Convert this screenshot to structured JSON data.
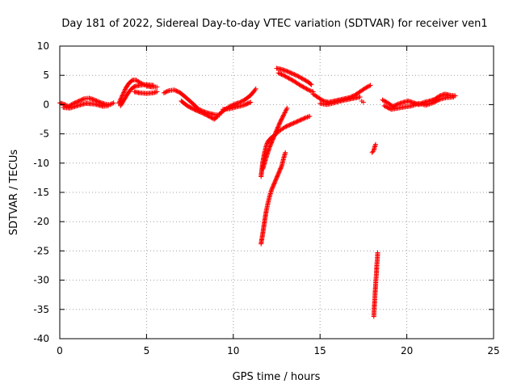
{
  "chart_data": {
    "type": "scatter",
    "title": "Day 181 of 2022, Sidereal Day-to-day VTEC variation (SDTVAR) for receiver ven1",
    "xlabel": "GPS time / hours",
    "ylabel": "SDTVAR / TECUs",
    "xlim": [
      0,
      25
    ],
    "ylim": [
      -40,
      10
    ],
    "xticks": [
      0,
      5,
      10,
      15,
      20,
      25
    ],
    "yticks": [
      -40,
      -35,
      -30,
      -25,
      -20,
      -15,
      -10,
      -5,
      0,
      5,
      10
    ],
    "grid": true,
    "marker": "+",
    "marker_color": "#ff0000",
    "series": [
      {
        "name": "ven1",
        "segments": [
          [
            [
              0.0,
              0.3
            ],
            [
              0.3,
              0.0
            ],
            [
              0.5,
              -0.3
            ],
            [
              0.8,
              0.2
            ],
            [
              1.1,
              0.6
            ],
            [
              1.4,
              1.0
            ],
            [
              1.7,
              1.1
            ],
            [
              2.0,
              0.8
            ],
            [
              2.3,
              0.4
            ],
            [
              2.6,
              0.1
            ],
            [
              2.9,
              0.0
            ],
            [
              3.1,
              0.3
            ]
          ],
          [
            [
              0.2,
              -0.5
            ],
            [
              0.6,
              -0.6
            ],
            [
              1.0,
              -0.2
            ],
            [
              1.5,
              0.2
            ],
            [
              2.0,
              0.1
            ],
            [
              2.5,
              -0.3
            ],
            [
              2.8,
              -0.2
            ]
          ],
          [
            [
              3.4,
              0.2
            ],
            [
              3.6,
              1.5
            ],
            [
              3.8,
              2.8
            ],
            [
              4.0,
              3.7
            ],
            [
              4.2,
              4.2
            ],
            [
              4.4,
              4.2
            ],
            [
              4.6,
              3.8
            ],
            [
              4.8,
              3.5
            ],
            [
              5.0,
              3.2
            ],
            [
              5.3,
              3.0
            ],
            [
              5.6,
              3.0
            ]
          ],
          [
            [
              3.5,
              -0.2
            ],
            [
              3.7,
              0.8
            ],
            [
              3.9,
              1.8
            ],
            [
              4.1,
              2.6
            ],
            [
              4.3,
              3.1
            ],
            [
              4.6,
              3.3
            ],
            [
              5.0,
              3.4
            ],
            [
              5.4,
              3.3
            ]
          ],
          [
            [
              4.3,
              2.2
            ],
            [
              4.6,
              2.0
            ],
            [
              5.0,
              1.9
            ],
            [
              5.4,
              2.0
            ],
            [
              5.6,
              2.2
            ]
          ],
          [
            [
              6.0,
              2.0
            ],
            [
              6.3,
              2.4
            ],
            [
              6.6,
              2.5
            ],
            [
              6.9,
              2.1
            ],
            [
              7.2,
              1.4
            ],
            [
              7.5,
              0.6
            ],
            [
              7.8,
              -0.2
            ],
            [
              8.0,
              -0.8
            ],
            [
              8.3,
              -1.2
            ],
            [
              8.6,
              -1.5
            ],
            [
              8.9,
              -1.7
            ],
            [
              9.2,
              -1.8
            ]
          ],
          [
            [
              7.0,
              0.6
            ],
            [
              7.4,
              -0.3
            ],
            [
              7.8,
              -0.9
            ],
            [
              8.2,
              -1.4
            ],
            [
              8.6,
              -2.0
            ],
            [
              8.9,
              -2.5
            ],
            [
              9.1,
              -2.0
            ]
          ],
          [
            [
              9.2,
              -1.6
            ],
            [
              9.5,
              -0.9
            ],
            [
              9.8,
              -0.3
            ],
            [
              10.1,
              0.1
            ],
            [
              10.4,
              0.4
            ],
            [
              10.7,
              0.9
            ],
            [
              11.0,
              1.6
            ],
            [
              11.2,
              2.3
            ],
            [
              11.3,
              2.7
            ]
          ],
          [
            [
              9.4,
              -0.8
            ],
            [
              9.8,
              -0.7
            ],
            [
              10.2,
              -0.4
            ],
            [
              10.6,
              -0.1
            ],
            [
              11.0,
              0.4
            ]
          ],
          [
            [
              11.6,
              -12.3
            ],
            [
              11.7,
              -9.8
            ],
            [
              11.8,
              -8.2
            ],
            [
              11.9,
              -7.0
            ],
            [
              12.0,
              -6.3
            ],
            [
              12.2,
              -5.6
            ],
            [
              12.4,
              -5.2
            ],
            [
              12.6,
              -4.6
            ],
            [
              12.8,
              -4.2
            ],
            [
              13.0,
              -3.8
            ],
            [
              13.3,
              -3.4
            ],
            [
              13.6,
              -3.0
            ],
            [
              13.9,
              -2.6
            ],
            [
              14.2,
              -2.2
            ],
            [
              14.4,
              -2.0
            ]
          ],
          [
            [
              11.7,
              -11.0
            ],
            [
              11.9,
              -9.0
            ],
            [
              12.1,
              -7.2
            ],
            [
              12.3,
              -5.8
            ],
            [
              12.5,
              -4.4
            ],
            [
              12.7,
              -3.0
            ],
            [
              12.9,
              -1.8
            ],
            [
              13.0,
              -1.2
            ],
            [
              13.1,
              -0.6
            ]
          ],
          [
            [
              11.6,
              -23.8
            ],
            [
              11.7,
              -22.0
            ],
            [
              11.8,
              -20.0
            ],
            [
              11.9,
              -18.2
            ],
            [
              12.0,
              -16.8
            ],
            [
              12.1,
              -15.6
            ],
            [
              12.2,
              -14.6
            ],
            [
              12.4,
              -13.2
            ],
            [
              12.6,
              -11.8
            ],
            [
              12.8,
              -10.4
            ],
            [
              12.9,
              -9.2
            ],
            [
              13.0,
              -8.2
            ]
          ],
          [
            [
              12.5,
              6.2
            ],
            [
              12.8,
              6.0
            ],
            [
              13.1,
              5.7
            ],
            [
              13.4,
              5.3
            ],
            [
              13.7,
              4.9
            ],
            [
              14.0,
              4.4
            ],
            [
              14.3,
              3.9
            ],
            [
              14.5,
              3.4
            ]
          ],
          [
            [
              12.6,
              5.4
            ],
            [
              12.9,
              5.0
            ],
            [
              13.2,
              4.5
            ],
            [
              13.5,
              4.0
            ],
            [
              13.8,
              3.4
            ],
            [
              14.1,
              2.9
            ],
            [
              14.4,
              2.4
            ],
            [
              14.6,
              2.2
            ]
          ],
          [
            [
              14.6,
              1.8
            ],
            [
              14.9,
              1.2
            ],
            [
              15.2,
              0.6
            ],
            [
              15.5,
              0.4
            ],
            [
              15.8,
              0.6
            ],
            [
              16.1,
              0.8
            ],
            [
              16.4,
              1.0
            ],
            [
              16.7,
              1.2
            ],
            [
              17.0,
              1.6
            ],
            [
              17.3,
              2.2
            ],
            [
              17.6,
              2.8
            ],
            [
              17.9,
              3.3
            ]
          ],
          [
            [
              15.0,
              0.2
            ],
            [
              15.4,
              0.0
            ],
            [
              15.8,
              0.3
            ],
            [
              16.3,
              0.7
            ],
            [
              16.8,
              1.0
            ],
            [
              17.3,
              1.3
            ]
          ],
          [
            [
              17.4,
              0.6
            ],
            [
              17.5,
              0.4
            ]
          ],
          [
            [
              18.0,
              -8.2
            ],
            [
              18.1,
              -7.8
            ],
            [
              18.15,
              -7.2
            ],
            [
              18.2,
              -6.8
            ]
          ],
          [
            [
              18.1,
              -36.2
            ],
            [
              18.12,
              -34.8
            ],
            [
              18.15,
              -33.5
            ],
            [
              18.17,
              -32.3
            ],
            [
              18.2,
              -31.0
            ],
            [
              18.22,
              -30.0
            ],
            [
              18.25,
              -28.8
            ],
            [
              18.27,
              -27.5
            ],
            [
              18.3,
              -26.5
            ],
            [
              18.32,
              -25.3
            ]
          ],
          [
            [
              18.6,
              0.8
            ],
            [
              18.9,
              0.3
            ],
            [
              19.2,
              -0.3
            ],
            [
              19.5,
              0.1
            ],
            [
              19.8,
              0.4
            ],
            [
              20.1,
              0.6
            ],
            [
              20.4,
              0.3
            ],
            [
              20.7,
              0.0
            ],
            [
              21.0,
              0.4
            ],
            [
              21.3,
              0.6
            ],
            [
              21.6,
              0.9
            ],
            [
              21.9,
              1.5
            ],
            [
              22.2,
              1.8
            ],
            [
              22.5,
              1.6
            ],
            [
              22.8,
              1.5
            ]
          ],
          [
            [
              18.7,
              -0.2
            ],
            [
              19.1,
              -0.8
            ],
            [
              19.5,
              -0.6
            ],
            [
              19.9,
              -0.4
            ],
            [
              20.3,
              -0.2
            ],
            [
              20.7,
              0.2
            ],
            [
              21.1,
              -0.1
            ],
            [
              21.5,
              0.3
            ],
            [
              21.9,
              0.9
            ],
            [
              22.3,
              1.2
            ],
            [
              22.7,
              1.3
            ]
          ]
        ]
      }
    ]
  }
}
